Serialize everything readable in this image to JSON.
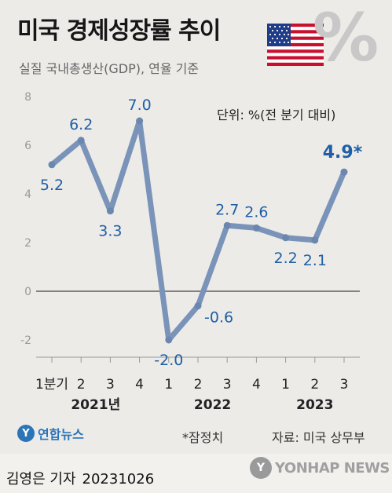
{
  "title": "미국 경제성장률 추이",
  "subtitle": "실질 국내총생산(GDP), 연율 기준",
  "unit_label": "단위: %(전 분기 대비)",
  "note": "*잠정치",
  "source": "자료: 미국 상무부",
  "logo": {
    "symbol": "Y",
    "text": "연합뉴스"
  },
  "byline": {
    "author": "김영은 기자",
    "date": "20231026"
  },
  "agency": {
    "symbol": "Y",
    "text": "YONHAP NEWS"
  },
  "decor": {
    "percent_symbol": "%"
  },
  "colors": {
    "line": "#7a93b8",
    "label": "#1f5fa6",
    "zero_line": "#444444",
    "grid_tick": "#999999"
  },
  "chart_data": {
    "type": "line",
    "categories": [
      "1분기",
      "2",
      "3",
      "4",
      "1",
      "2",
      "3",
      "4",
      "1",
      "2",
      "3"
    ],
    "year_labels": [
      {
        "label": "2021년",
        "start": 0,
        "end": 3
      },
      {
        "label": "2022",
        "start": 4,
        "end": 7
      },
      {
        "label": "2023",
        "start": 8,
        "end": 10
      }
    ],
    "values": [
      5.2,
      6.2,
      3.3,
      7.0,
      -2.0,
      -0.6,
      2.7,
      2.6,
      2.2,
      2.1,
      4.9
    ],
    "data_labels": [
      "5.2",
      "6.2",
      "3.3",
      "7.0",
      "-2.0",
      "-0.6",
      "2.7",
      "2.6",
      "2.2",
      "2.1",
      "4.9*"
    ],
    "label_positions": [
      "below",
      "above",
      "below",
      "above",
      "below",
      "right",
      "above",
      "above",
      "below",
      "below",
      "above"
    ],
    "emphasized_index": 10,
    "yticks": [
      -2,
      0,
      2,
      4,
      6,
      8
    ],
    "ylim": [
      -3,
      8
    ],
    "zero_line": true,
    "grid": false
  }
}
